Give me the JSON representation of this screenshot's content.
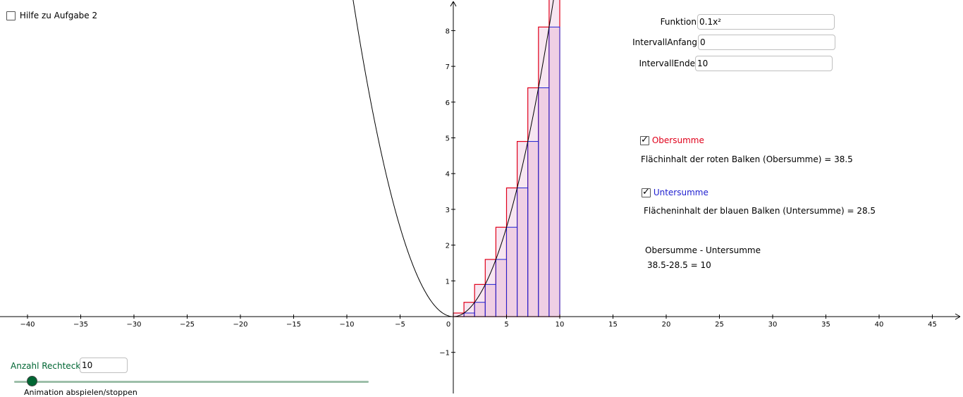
{
  "help_checkbox": {
    "label": "Hilfe zu Aufgabe 2",
    "checked": false
  },
  "inputs": {
    "funktion": {
      "label": "Funktion",
      "value": "0.1x²"
    },
    "intervall_anfang": {
      "label": "IntervallAnfang",
      "value": "0"
    },
    "intervall_ende": {
      "label": "IntervallEnde",
      "value": "10"
    }
  },
  "obersumme": {
    "checkbox_label": "Obersumme",
    "checked": true,
    "color": "#e0001a",
    "area_text": "Flächinhalt der roten Balken (Obersumme) = 38.5"
  },
  "untersumme": {
    "checkbox_label": "Untersumme",
    "checked": true,
    "color": "#2020d0",
    "area_text": "Flächeninhalt der blauen Balken (Untersumme) = 28.5"
  },
  "difference": {
    "title": "Obersumme - Untersumme",
    "calc": "38.5-28.5 = 10"
  },
  "slider": {
    "label": "Anzahl Rechtecke",
    "value": "10",
    "color": "#006633",
    "caption": "Animation abspielen/stoppen"
  },
  "chart_data": {
    "type": "line",
    "function": "0.1x²",
    "interval": [
      0,
      10
    ],
    "rectangles": 10,
    "upper_heights": [
      0.1,
      0.4,
      0.9,
      1.6,
      2.5,
      3.6,
      4.9,
      6.4,
      8.1,
      10
    ],
    "lower_heights": [
      0,
      0.1,
      0.4,
      0.9,
      1.6,
      2.5,
      3.6,
      4.9,
      6.4,
      8.1
    ],
    "xlim": [
      -42.7,
      48.1
    ],
    "ylim": [
      -2,
      8.85
    ],
    "x_ticks": [
      -40,
      -35,
      -30,
      -25,
      -20,
      -15,
      -10,
      -5,
      0,
      5,
      10,
      15,
      20,
      25,
      30,
      35,
      40,
      45
    ],
    "y_ticks": [
      -1,
      1,
      2,
      3,
      4,
      5,
      6,
      7,
      8
    ],
    "colors": {
      "upper": "#e0001a",
      "lower": "#2020d0",
      "fill": "#f2d6e8",
      "curve": "#000000"
    }
  }
}
